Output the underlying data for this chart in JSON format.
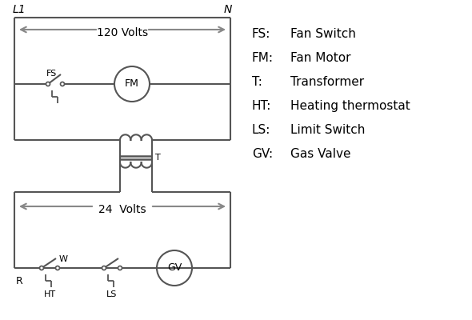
{
  "bg_color": "#ffffff",
  "line_color": "#555555",
  "arrow_color": "#888888",
  "text_color": "#000000",
  "legend_items": [
    [
      "FS:",
      "Fan Switch"
    ],
    [
      "FM:",
      "Fan Motor"
    ],
    [
      "T:",
      "Transformer"
    ],
    [
      "HT:",
      "Heating thermostat"
    ],
    [
      "LS:",
      "Limit Switch"
    ],
    [
      "GV:",
      "Gas Valve"
    ]
  ],
  "volts_120_label": "120 Volts",
  "volts_24_label": "24  Volts",
  "L1_label": "L1",
  "N_label": "N",
  "R_label": "R",
  "W_label": "W",
  "FS_label": "FS",
  "FM_label": "FM",
  "T_label": "T",
  "HT_label": "HT",
  "LS_label": "LS",
  "GV_label": "GV"
}
